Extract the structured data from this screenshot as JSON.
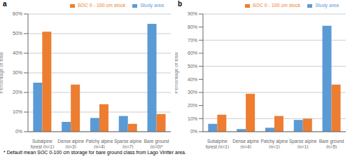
{
  "chart_data": [
    {
      "type": "bar",
      "title": "a",
      "categories": [
        "Subalpine\nforest (n=1)",
        "Dense alpine\n(n=3)",
        "Patchy alpine\n(n=4)",
        "Sparse alpine\n(n=7)",
        "Bare ground\n(n=0)*"
      ],
      "series": [
        {
          "name": "Study area",
          "color": "#5B9BD5",
          "values": [
            25,
            5,
            7,
            8,
            55
          ]
        },
        {
          "name": "SOC 0 - 100 cm stock",
          "color": "#ED7D31",
          "values": [
            51,
            24,
            14,
            4,
            9
          ]
        }
      ],
      "ylabel": "Percentage of total",
      "ylim": [
        0,
        60
      ],
      "yticks": [
        {
          "value": 0,
          "label": "0%"
        },
        {
          "value": 10,
          "label": "10%"
        },
        {
          "value": 20,
          "label": "20%"
        },
        {
          "value": 30,
          "label": "30%"
        },
        {
          "value": 40,
          "label": "40%"
        },
        {
          "value": 50,
          "label": "50%"
        },
        {
          "value": 60,
          "label": "60%"
        }
      ],
      "grid": true,
      "legend": "upper right",
      "annotations": [
        "* Default mean SOC 0-100 cm storage for bare ground class from Lago Vintter area."
      ]
    },
    {
      "type": "bar",
      "title": "b",
      "categories": [
        "Subalpine\nforest (n=1)",
        "Dense alpine\n(n=4)",
        "Patchy alpine\n(n=1)",
        "Sparse alpine\n(n=1)",
        "Bare ground\n(n=5)"
      ],
      "series": [
        {
          "name": "Study area",
          "color": "#5B9BD5",
          "values": [
            6,
            2,
            3,
            9,
            81
          ]
        },
        {
          "name": "SOC 0 - 100 cm stock",
          "color": "#ED7D31",
          "values": [
            13,
            29,
            12,
            10,
            36
          ]
        }
      ],
      "ylabel": "Percentage of total",
      "ylim": [
        0,
        90
      ],
      "yticks": [
        {
          "value": 0,
          "label": "0%"
        },
        {
          "value": 10,
          "label": "10%"
        },
        {
          "value": 20,
          "label": "20%"
        },
        {
          "value": 30,
          "label": "30%"
        },
        {
          "value": 40,
          "label": "40%"
        },
        {
          "value": 50,
          "label": "50%"
        },
        {
          "value": 60,
          "label": "60%"
        },
        {
          "value": 70,
          "label": "70%"
        },
        {
          "value": 80,
          "label": "80%"
        },
        {
          "value": 90,
          "label": "90%"
        }
      ],
      "grid": true,
      "legend": "upper right"
    }
  ]
}
